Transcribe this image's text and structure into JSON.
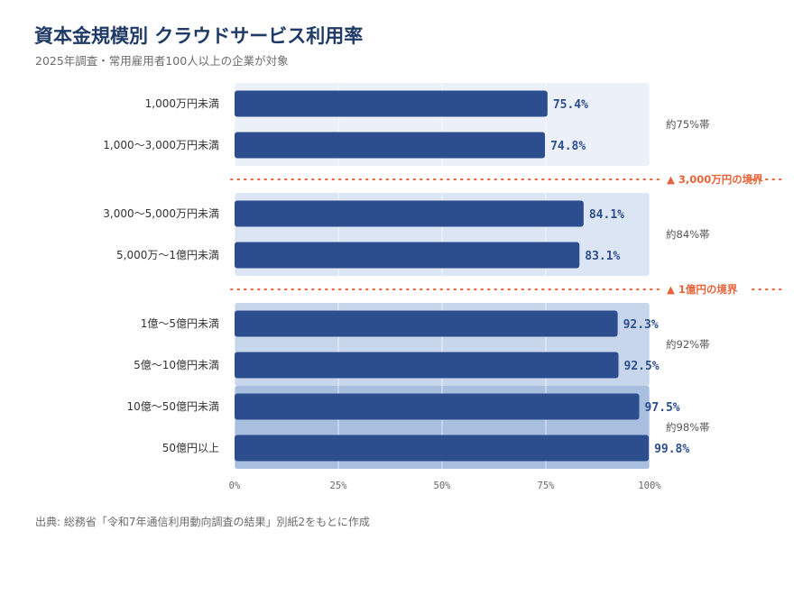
{
  "header": {
    "title": "資本金規模別 クラウドサービス利用率",
    "subtitle": "2025年調査・常用雇用者100人以上の企業が対象"
  },
  "footer": {
    "source": "出典: 総務省「令和7年通信利用動向調査の結果」別紙2をもとに作成"
  },
  "colors": {
    "bar": "#2c4d8e",
    "value_label": "#2c4d8e",
    "threshold": "#e8623a",
    "band_1": "#ebf0f9",
    "band_2": "#dce5f3",
    "band_3": "#c8d6ec",
    "band_4": "#a9bfe0",
    "grid": "#e6e6e6"
  },
  "chart_data": {
    "type": "bar",
    "orientation": "horizontal",
    "categories": [
      "1,000万円未満",
      "1,000〜3,000万円未満",
      "3,000〜5,000万円未満",
      "5,000万〜1億円未満",
      "1億〜5億円未満",
      "5億〜10億円未満",
      "10億〜50億円未満",
      "50億円以上"
    ],
    "values": [
      75.4,
      74.8,
      84.1,
      83.1,
      92.3,
      92.5,
      97.5,
      99.8
    ],
    "value_labels": [
      "75.4%",
      "74.8%",
      "84.1%",
      "83.1%",
      "92.3%",
      "92.5%",
      "97.5%",
      "99.8%"
    ],
    "xlim": [
      0,
      100
    ],
    "xticks": [
      0,
      25,
      50,
      75,
      100
    ],
    "xtick_labels": [
      "0%",
      "25%",
      "50%",
      "75%",
      "100%"
    ],
    "grid": true,
    "bands": [
      {
        "label": "約75%帯",
        "from": 0,
        "to": 1,
        "color_key": "band_1"
      },
      {
        "label": "約84%帯",
        "from": 2,
        "to": 3,
        "color_key": "band_2"
      },
      {
        "label": "約92%帯",
        "from": 4,
        "to": 5,
        "color_key": "band_3"
      },
      {
        "label": "約98%帯",
        "from": 6,
        "to": 7,
        "color_key": "band_4"
      }
    ],
    "thresholds": [
      {
        "label": "▲ 3,000万円の境界",
        "after": 1
      },
      {
        "label": "▲ 1億円の境界",
        "after": 3
      }
    ]
  }
}
